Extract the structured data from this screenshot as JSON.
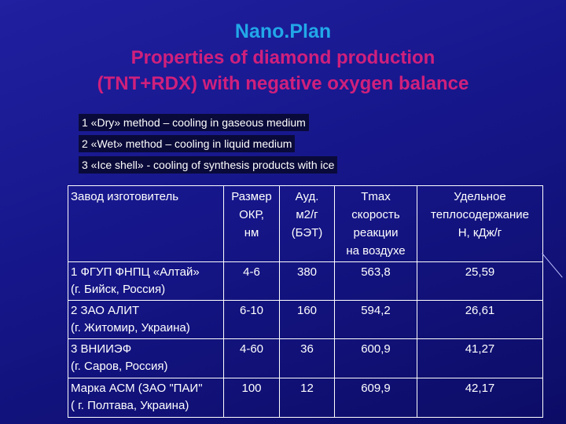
{
  "header": {
    "title": "Nano.Plan",
    "subtitle_lines": [
      "Properties of diamond production",
      "(TNT+RDX) with negative oxygen balance"
    ]
  },
  "notes": [
    "1 «Dry» method – cooling in gaseous medium",
    "2 «Wet» method – cooling in liquid medium",
    "3 «Ice shell» - cooling of synthesis products with ice"
  ],
  "table": {
    "header": [
      [
        "Завод изготовитель"
      ],
      [
        "Размер",
        "ОКР,",
        "нм"
      ],
      [
        "Ауд.",
        "м2/г",
        "(БЭТ)"
      ],
      [
        "Tmax",
        "скорость",
        "реакции",
        "на воздухе"
      ],
      [
        "Удельное",
        "теплосодержание",
        "Н, кДж/г"
      ]
    ],
    "rows": [
      [
        [
          "1 ФГУП ФНПЦ  «Алтай»",
          "(г. Бийск, Россия)"
        ],
        "4-6",
        "380",
        "563,8",
        "25,59"
      ],
      [
        [
          "2 ЗАО АЛИТ",
          "(г. Житомир, Украина)"
        ],
        "6-10",
        "160",
        "594,2",
        "26,61"
      ],
      [
        [
          "3 ВНИИЭФ",
          "(г. Саров, Россия)"
        ],
        "4-60",
        "36",
        "600,9",
        "41,27"
      ],
      [
        [
          "Марка АСМ (ЗАО \"ПАИ\"",
          "( г. Полтава, Украина)"
        ],
        "100",
        "12",
        "609,9",
        "42,17"
      ]
    ]
  }
}
